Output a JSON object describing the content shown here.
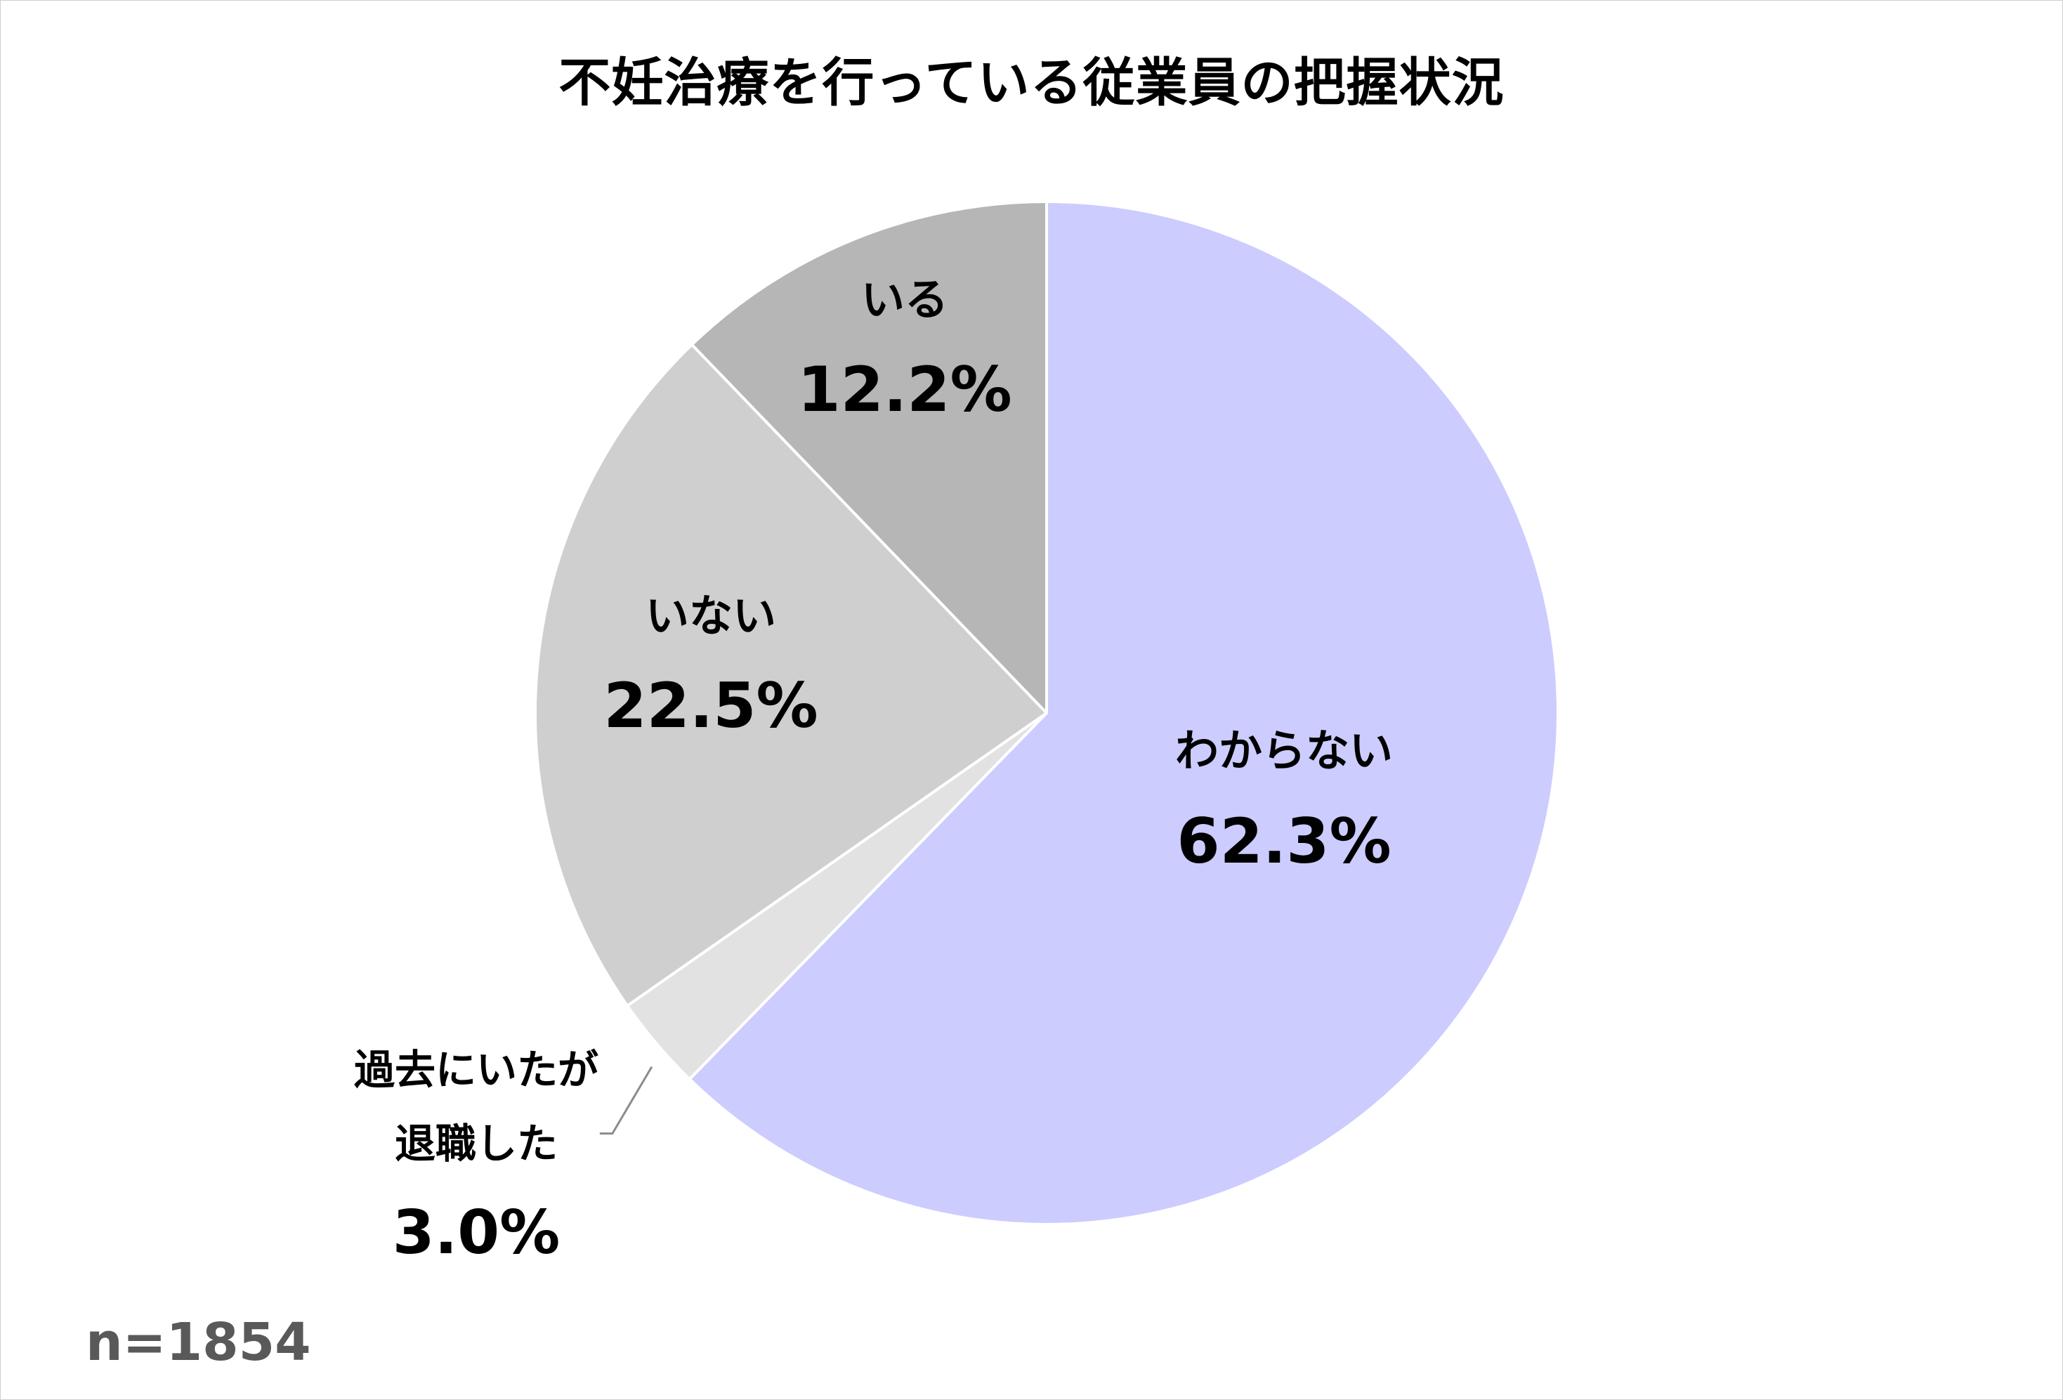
{
  "chart_data": {
    "type": "pie",
    "title": "不妊治療を行っている従業員の把握状況",
    "slices": [
      {
        "label_lines": [
          "わからない"
        ],
        "value_label": "62.3%",
        "value": 62.3,
        "color": "#ccccff"
      },
      {
        "label_lines": [
          "過去にいたが",
          "退職した"
        ],
        "value_label": "3.0%",
        "value": 3.0,
        "color": "#e2e2e2"
      },
      {
        "label_lines": [
          "いない"
        ],
        "value_label": "22.5%",
        "value": 22.5,
        "color": "#d0cfd0"
      },
      {
        "label_lines": [
          "いる"
        ],
        "value_label": "12.2%",
        "value": 12.2,
        "color": "#b6b6b6"
      }
    ],
    "start": "12 o'clock",
    "direction": "clockwise",
    "sample_size": "n=1854"
  }
}
